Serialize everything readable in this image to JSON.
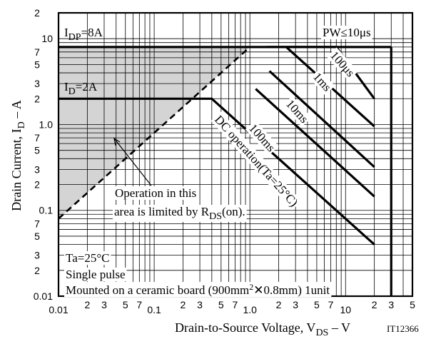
{
  "chart_data": {
    "type": "line",
    "title": "",
    "xlabel": {
      "prefix": "Drain-to-Source Voltage, V",
      "sub": "DS",
      "suffix": " – V"
    },
    "ylabel": {
      "prefix": "Drain Current, I",
      "sub": "D",
      "suffix": " – A"
    },
    "x_scale": "log",
    "y_scale": "log",
    "xlim": [
      0.01,
      50
    ],
    "ylim": [
      0.01,
      20
    ],
    "grid": true,
    "x_decades": [
      {
        "value": 0.01,
        "label": "0.01"
      },
      {
        "value": 0.1,
        "label": "0.1"
      },
      {
        "value": 1.0,
        "label": "1.0"
      },
      {
        "value": 10,
        "label": "10"
      }
    ],
    "x_minor_labels": [
      "2",
      "3",
      "5",
      "7"
    ],
    "y_decades": [
      {
        "value": 0.01,
        "label": "0.01"
      },
      {
        "value": 0.1,
        "label": "0.1"
      },
      {
        "value": 1.0,
        "label": "1.0"
      },
      {
        "value": 10,
        "label": "10"
      }
    ],
    "y_minor_labels": [
      "2",
      "3",
      "5",
      "7"
    ],
    "top_label": "2",
    "x_end_labels": [
      "2",
      "3",
      "5"
    ],
    "series": [
      {
        "name": "PW≤10μs",
        "x": [
          0.01,
          30
        ],
        "y": [
          8,
          8
        ]
      },
      {
        "name": "100μs",
        "x": [
          1.5,
          8,
          20
        ],
        "y": [
          8,
          8,
          2
        ]
      },
      {
        "name": "1ms",
        "x": [
          2.4,
          20
        ],
        "y": [
          8,
          0.95
        ]
      },
      {
        "name": "10ms",
        "x": [
          1.6,
          20
        ],
        "y": [
          4.2,
          0.32
        ]
      },
      {
        "name": "100ms",
        "x": [
          1.15,
          20
        ],
        "y": [
          2.6,
          0.145
        ]
      },
      {
        "name": "I_D=2A",
        "x": [
          0.01,
          0.4,
          20
        ],
        "y": [
          2,
          2,
          0.04
        ]
      },
      {
        "name": "R_DS(on) limit",
        "x": [
          0.01,
          1.0
        ],
        "y": [
          0.08,
          8
        ]
      }
    ],
    "annotations": [
      {
        "id": "idp",
        "text": "I",
        "sub": "DP",
        "suffix": "=8A"
      },
      {
        "id": "pw",
        "text": "PW≤10μs"
      },
      {
        "id": "id2",
        "text": "I",
        "sub": "D",
        "suffix": "=2A"
      },
      {
        "id": "l100us",
        "text": "100μs"
      },
      {
        "id": "l1ms",
        "text": "1ms"
      },
      {
        "id": "l10ms",
        "text": "10ms"
      },
      {
        "id": "l100ms",
        "text": "100ms"
      },
      {
        "id": "ldc",
        "text": "DC operation(Ta=25°C)"
      },
      {
        "id": "op1",
        "text": "Operation in this"
      },
      {
        "id": "op2",
        "text": "area is limited by R",
        "sub": "DS",
        "suffix": "(on)."
      },
      {
        "id": "cond1",
        "text": "Ta=25°C"
      },
      {
        "id": "cond2",
        "text": "Single pulse"
      },
      {
        "id": "cond3",
        "text": "Mounted on a ceramic board (900mm",
        "sup": "2",
        "suffix": "✕0.8mm) 1unit"
      },
      {
        "id": "code",
        "text": "IT12366"
      }
    ],
    "shaded_region": "area above R_DS(on) limit line, below I_DP=8A",
    "colors": {
      "shade": "#d4d4d4",
      "line": "#000000"
    }
  }
}
